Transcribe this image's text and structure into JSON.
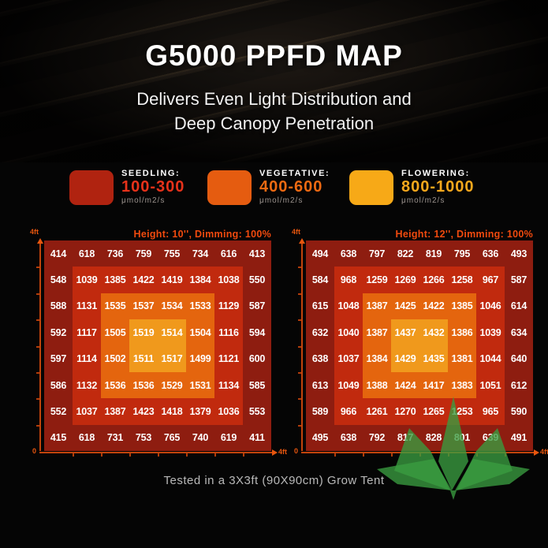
{
  "hero": {
    "title": "G5000 PPFD MAP",
    "subtitle": [
      "Delivers Even Light Distribution and",
      "Deep Canopy Penetration"
    ]
  },
  "legend": {
    "items": [
      {
        "stage": "SEEDLING:",
        "range": "100-300",
        "unit": "μmol/m2/s",
        "swatch_color": "#b02310",
        "range_color": "#e8321a"
      },
      {
        "stage": "VEGETATIVE:",
        "range": "400-600",
        "unit": "μmol/m2/s",
        "swatch_color": "#e55c10",
        "range_color": "#ee6a12"
      },
      {
        "stage": "FLOWERING:",
        "range": "800-1000",
        "unit": "μmol/m2/s",
        "swatch_color": "#f7a917",
        "range_color": "#f6a81c"
      }
    ]
  },
  "heatmap_palette": {
    "ring_colors": [
      "#8e1d10",
      "#c12a0e",
      "#e4650e",
      "#f0991c"
    ]
  },
  "chart_data": [
    {
      "type": "heatmap",
      "title": "Height: 10'', Dimming: 100%",
      "unit": "μmol/m2/s",
      "y_axis": {
        "top_label": "4ft"
      },
      "x_axis": {
        "origin_label": "0",
        "end_label": "4ft"
      },
      "values": [
        [
          414,
          618,
          736,
          759,
          755,
          734,
          616,
          413
        ],
        [
          548,
          1039,
          1385,
          1422,
          1419,
          1384,
          1038,
          550
        ],
        [
          588,
          1131,
          1535,
          1537,
          1534,
          1533,
          1129,
          587
        ],
        [
          592,
          1117,
          1505,
          1519,
          1514,
          1504,
          1116,
          594
        ],
        [
          597,
          1114,
          1502,
          1511,
          1517,
          1499,
          1121,
          600
        ],
        [
          586,
          1132,
          1536,
          1536,
          1529,
          1531,
          1134,
          585
        ],
        [
          552,
          1037,
          1387,
          1423,
          1418,
          1379,
          1036,
          553
        ],
        [
          415,
          618,
          731,
          753,
          765,
          740,
          619,
          411
        ]
      ]
    },
    {
      "type": "heatmap",
      "title": "Height: 12'', Dimming: 100%",
      "unit": "μmol/m2/s",
      "y_axis": {
        "top_label": "4ft"
      },
      "x_axis": {
        "origin_label": "0",
        "end_label": "4ft"
      },
      "values": [
        [
          494,
          638,
          797,
          822,
          819,
          795,
          636,
          493
        ],
        [
          584,
          968,
          1259,
          1269,
          1266,
          1258,
          967,
          587
        ],
        [
          615,
          1048,
          1387,
          1425,
          1422,
          1385,
          1046,
          614
        ],
        [
          632,
          1040,
          1387,
          1437,
          1432,
          1386,
          1039,
          634
        ],
        [
          638,
          1037,
          1384,
          1429,
          1435,
          1381,
          1044,
          640
        ],
        [
          613,
          1049,
          1388,
          1424,
          1417,
          1383,
          1051,
          612
        ],
        [
          589,
          966,
          1261,
          1270,
          1265,
          1253,
          965,
          590
        ],
        [
          495,
          638,
          792,
          817,
          828,
          801,
          639,
          491
        ]
      ]
    }
  ],
  "footer": {
    "note": "Tested in a 3X3ft (90X90cm) Grow Tent"
  },
  "decorations": {
    "leaf_color": "#3a9c40"
  }
}
